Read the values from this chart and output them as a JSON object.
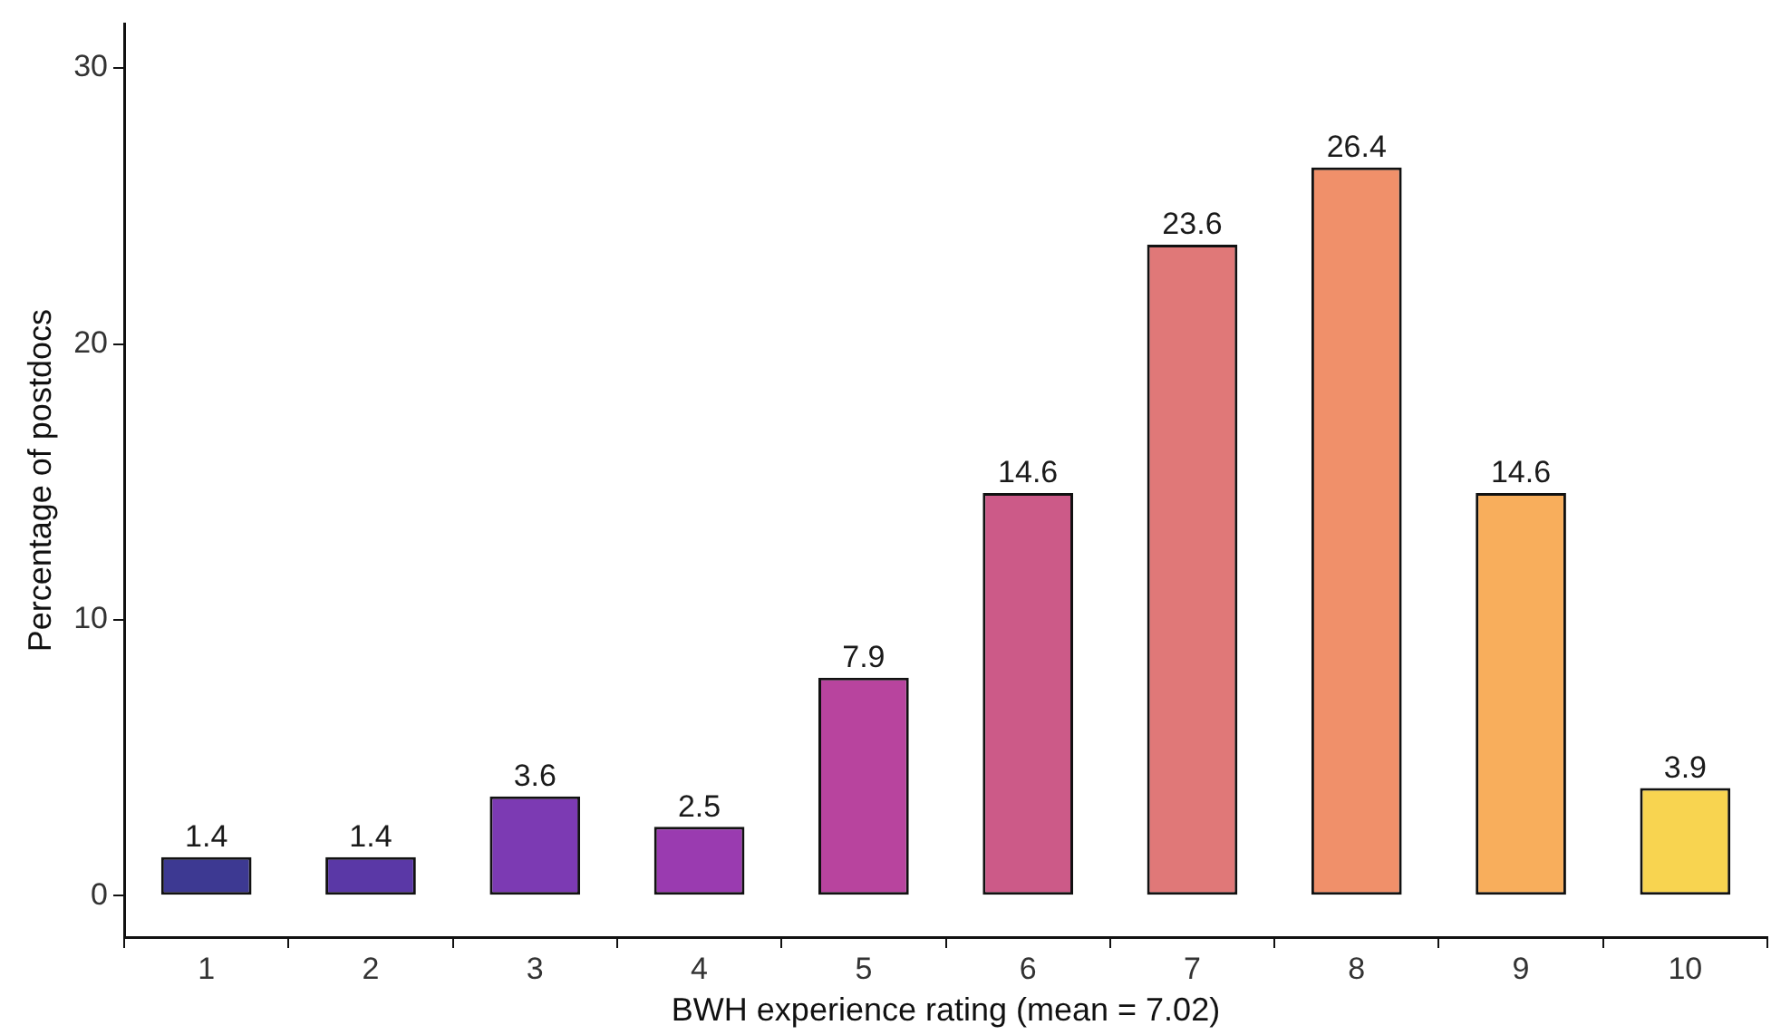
{
  "chart_data": {
    "type": "bar",
    "xlabel": "BWH experience rating (mean = 7.02)",
    "ylabel": "Percentage of postdocs",
    "categories": [
      "1",
      "2",
      "3",
      "4",
      "5",
      "6",
      "7",
      "8",
      "9",
      "10"
    ],
    "values": [
      1.4,
      1.4,
      3.6,
      2.5,
      7.9,
      14.6,
      23.6,
      26.4,
      14.6,
      3.9
    ],
    "colors": [
      "#3d3992",
      "#5a38a6",
      "#7c3ab3",
      "#9a3bb0",
      "#b8449e",
      "#cc5a88",
      "#e07878",
      "#f0906a",
      "#f8ae5c",
      "#f8d450"
    ],
    "ylim": [
      -1.5,
      31.6
    ],
    "yticks": [
      0,
      10,
      20,
      30
    ],
    "grid": false,
    "legend": false,
    "data_labels": true
  }
}
